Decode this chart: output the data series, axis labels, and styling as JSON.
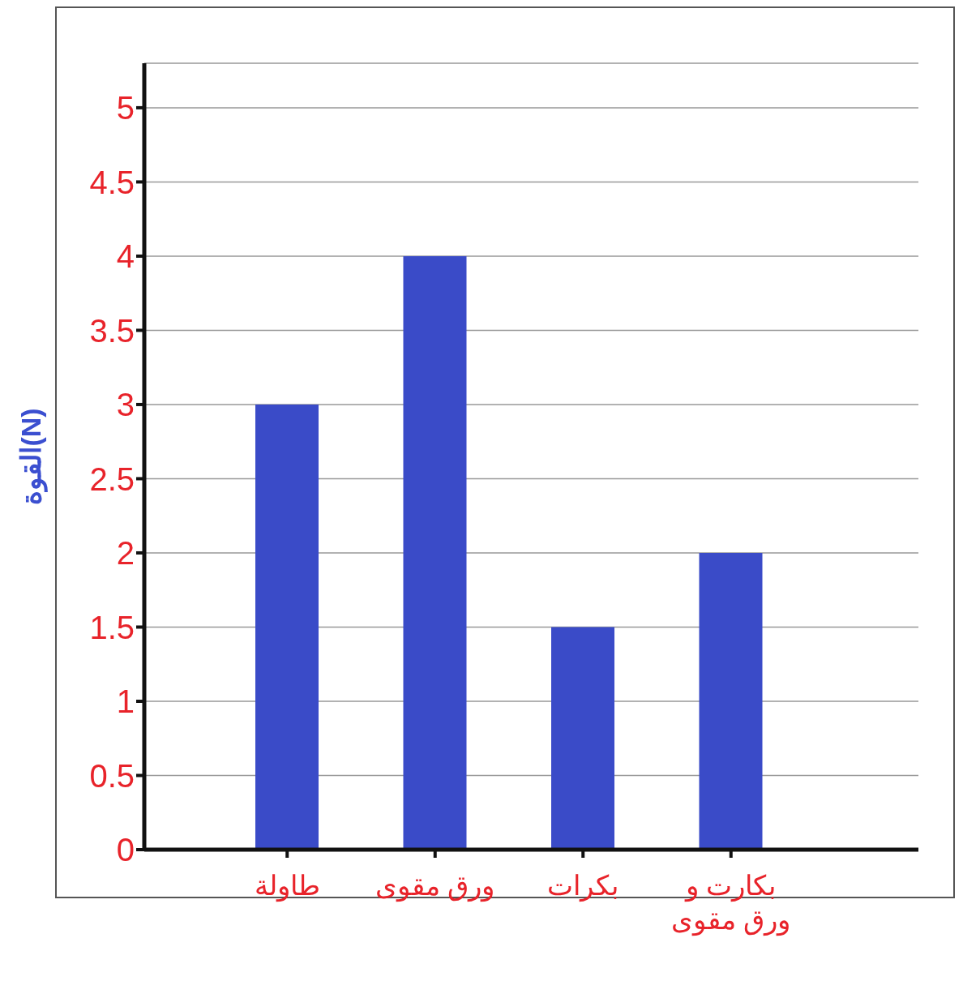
{
  "chart_data": {
    "type": "bar",
    "ylabel": "القوة(N)",
    "categories": [
      "طاولة",
      "ورق مقوى",
      "بكرات",
      "بكارت و ورق مقوى"
    ],
    "values": [
      3,
      4,
      1.5,
      2
    ],
    "color": "#3a4bc8",
    "ylim": [
      0,
      5.3
    ],
    "yticks": [
      0,
      0.5,
      1,
      1.5,
      2,
      2.5,
      3,
      3.5,
      4,
      4.5,
      5
    ],
    "grid": "y"
  }
}
